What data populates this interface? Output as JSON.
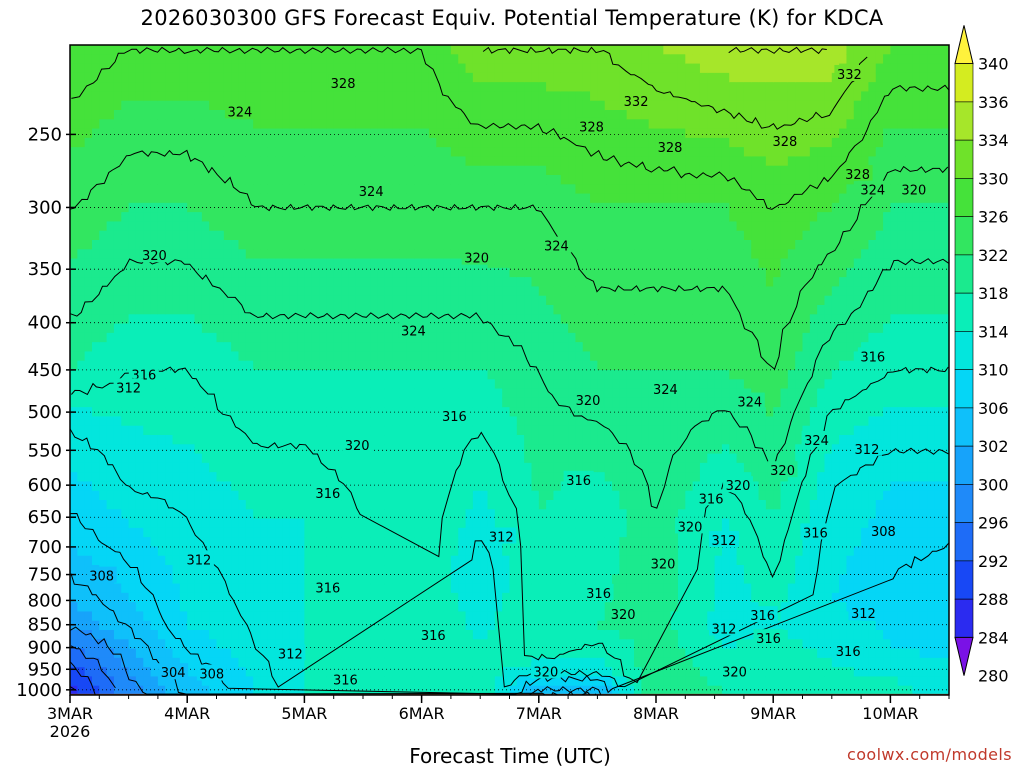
{
  "chart_data": {
    "type": "heatmap",
    "title": "2026030300 GFS Forecast Equiv. Potential Temperature (K) for KDCA",
    "xlabel": "Forecast Time (UTC)",
    "ylabel": "",
    "x_ticks": [
      "3MAR",
      "4MAR",
      "5MAR",
      "6MAR",
      "7MAR",
      "8MAR",
      "9MAR",
      "10MAR"
    ],
    "x_first_year": "2026",
    "x_range_days": [
      0,
      7.5
    ],
    "y_ticks": [
      250,
      300,
      350,
      400,
      450,
      500,
      550,
      600,
      650,
      700,
      750,
      800,
      850,
      900,
      950,
      1000
    ],
    "y_range_hpa": [
      200,
      1013
    ],
    "y_scale": "log-pressure",
    "colorbar_levels": [
      280,
      284,
      288,
      292,
      296,
      300,
      302,
      306,
      310,
      314,
      318,
      322,
      326,
      330,
      334,
      336,
      340
    ],
    "colorbar_colors": [
      "#7a12e6",
      "#2b2bf0",
      "#1848f5",
      "#1e6cf7",
      "#1f8af9",
      "#17a3fa",
      "#0fc0fa",
      "#05d6f6",
      "#03e6dd",
      "#0aeeb8",
      "#1bea8e",
      "#32e660",
      "#45e23a",
      "#6fe22a",
      "#a6e62a",
      "#d4ec20",
      "#fff23c"
    ],
    "background_levels": [
      {
        "t": 0.0,
        "levels": [
          [
            200,
            330
          ],
          [
            300,
            324
          ],
          [
            450,
            318
          ],
          [
            520,
            312
          ],
          [
            700,
            306
          ],
          [
            850,
            300
          ],
          [
            950,
            290
          ],
          [
            1013,
            286
          ]
        ]
      },
      {
        "t": 0.5,
        "levels": [
          [
            200,
            328
          ],
          [
            300,
            322
          ],
          [
            450,
            316
          ],
          [
            600,
            312
          ],
          [
            800,
            306
          ],
          [
            900,
            302
          ],
          [
            1013,
            298
          ]
        ]
      },
      {
        "t": 1.0,
        "levels": [
          [
            200,
            328
          ],
          [
            300,
            322
          ],
          [
            450,
            316
          ],
          [
            650,
            312
          ],
          [
            850,
            310
          ],
          [
            950,
            306
          ],
          [
            1013,
            304
          ]
        ]
      },
      {
        "t": 1.6,
        "levels": [
          [
            200,
            328
          ],
          [
            300,
            324
          ],
          [
            450,
            318
          ],
          [
            650,
            314
          ],
          [
            900,
            312
          ],
          [
            1013,
            310
          ]
        ]
      },
      {
        "t": 2.0,
        "levels": [
          [
            200,
            328
          ],
          [
            300,
            324
          ],
          [
            450,
            318
          ],
          [
            650,
            314
          ],
          [
            900,
            314
          ],
          [
            1013,
            314
          ]
        ]
      },
      {
        "t": 3.0,
        "levels": [
          [
            200,
            328
          ],
          [
            300,
            324
          ],
          [
            450,
            318
          ],
          [
            650,
            318
          ],
          [
            900,
            318
          ],
          [
            1013,
            318
          ]
        ]
      },
      {
        "t": 3.5,
        "levels": [
          [
            200,
            332
          ],
          [
            300,
            324
          ],
          [
            450,
            318
          ],
          [
            600,
            314
          ],
          [
            750,
            310
          ],
          [
            900,
            314
          ],
          [
            1013,
            318
          ]
        ]
      },
      {
        "t": 4.0,
        "levels": [
          [
            200,
            332
          ],
          [
            300,
            324
          ],
          [
            450,
            320
          ],
          [
            650,
            318
          ],
          [
            900,
            318
          ],
          [
            950,
            312
          ],
          [
            1013,
            300
          ]
        ]
      },
      {
        "t": 4.5,
        "levels": [
          [
            200,
            332
          ],
          [
            300,
            326
          ],
          [
            450,
            322
          ],
          [
            650,
            316
          ],
          [
            850,
            318
          ],
          [
            950,
            312
          ],
          [
            1013,
            300
          ]
        ]
      },
      {
        "t": 5.0,
        "levels": [
          [
            200,
            334
          ],
          [
            300,
            326
          ],
          [
            450,
            322
          ],
          [
            650,
            320
          ],
          [
            900,
            320
          ],
          [
            1013,
            322
          ]
        ]
      },
      {
        "t": 5.6,
        "levels": [
          [
            200,
            336
          ],
          [
            300,
            326
          ],
          [
            450,
            322
          ],
          [
            650,
            314
          ],
          [
            850,
            312
          ],
          [
            1013,
            318
          ]
        ]
      },
      {
        "t": 6.0,
        "levels": [
          [
            200,
            336
          ],
          [
            300,
            328
          ],
          [
            450,
            324
          ],
          [
            650,
            318
          ],
          [
            850,
            314
          ],
          [
            1013,
            318
          ]
        ]
      },
      {
        "t": 6.5,
        "levels": [
          [
            200,
            336
          ],
          [
            300,
            326
          ],
          [
            450,
            318
          ],
          [
            600,
            312
          ],
          [
            800,
            310
          ],
          [
            1013,
            316
          ]
        ]
      },
      {
        "t": 7.0,
        "levels": [
          [
            200,
            330
          ],
          [
            300,
            322
          ],
          [
            450,
            316
          ],
          [
            600,
            310
          ],
          [
            750,
            308
          ],
          [
            900,
            310
          ],
          [
            1013,
            316
          ]
        ]
      },
      {
        "t": 7.5,
        "levels": [
          [
            200,
            330
          ],
          [
            300,
            322
          ],
          [
            450,
            316
          ],
          [
            600,
            310
          ],
          [
            800,
            306
          ],
          [
            1013,
            312
          ]
        ]
      }
    ],
    "contour_labels": [
      {
        "text": "328",
        "t": 2.33,
        "p": 220
      },
      {
        "text": "324",
        "t": 1.45,
        "p": 236
      },
      {
        "text": "332",
        "t": 4.83,
        "p": 230
      },
      {
        "text": "328",
        "t": 4.45,
        "p": 245
      },
      {
        "text": "328",
        "t": 5.12,
        "p": 258
      },
      {
        "text": "328",
        "t": 6.1,
        "p": 254
      },
      {
        "text": "332",
        "t": 6.65,
        "p": 215
      },
      {
        "text": "328",
        "t": 6.72,
        "p": 276
      },
      {
        "text": "324",
        "t": 6.85,
        "p": 287
      },
      {
        "text": "320",
        "t": 7.2,
        "p": 287
      },
      {
        "text": "324",
        "t": 2.57,
        "p": 288
      },
      {
        "text": "324",
        "t": 4.15,
        "p": 330
      },
      {
        "text": "320",
        "t": 0.72,
        "p": 338
      },
      {
        "text": "320",
        "t": 3.47,
        "p": 340
      },
      {
        "text": "324",
        "t": 2.93,
        "p": 408
      },
      {
        "text": "316",
        "t": 0.63,
        "p": 455
      },
      {
        "text": "312",
        "t": 0.5,
        "p": 470
      },
      {
        "text": "316",
        "t": 6.85,
        "p": 435
      },
      {
        "text": "324",
        "t": 5.08,
        "p": 472
      },
      {
        "text": "324",
        "t": 5.8,
        "p": 487
      },
      {
        "text": "320",
        "t": 4.42,
        "p": 485
      },
      {
        "text": "316",
        "t": 3.28,
        "p": 505
      },
      {
        "text": "324",
        "t": 6.37,
        "p": 536
      },
      {
        "text": "320",
        "t": 2.45,
        "p": 543
      },
      {
        "text": "312",
        "t": 6.8,
        "p": 548
      },
      {
        "text": "320",
        "t": 6.08,
        "p": 578
      },
      {
        "text": "316",
        "t": 4.34,
        "p": 592
      },
      {
        "text": "316",
        "t": 2.2,
        "p": 612
      },
      {
        "text": "320",
        "t": 5.7,
        "p": 600
      },
      {
        "text": "316",
        "t": 5.47,
        "p": 620
      },
      {
        "text": "320",
        "t": 5.29,
        "p": 665
      },
      {
        "text": "312",
        "t": 3.68,
        "p": 682
      },
      {
        "text": "312",
        "t": 5.58,
        "p": 688
      },
      {
        "text": "316",
        "t": 6.36,
        "p": 675
      },
      {
        "text": "308",
        "t": 6.94,
        "p": 673
      },
      {
        "text": "312",
        "t": 1.1,
        "p": 722
      },
      {
        "text": "308",
        "t": 0.27,
        "p": 752
      },
      {
        "text": "320",
        "t": 5.06,
        "p": 730
      },
      {
        "text": "316",
        "t": 2.2,
        "p": 775
      },
      {
        "text": "316",
        "t": 4.51,
        "p": 785
      },
      {
        "text": "320",
        "t": 4.72,
        "p": 828
      },
      {
        "text": "316",
        "t": 5.91,
        "p": 830
      },
      {
        "text": "312",
        "t": 5.58,
        "p": 858
      },
      {
        "text": "312",
        "t": 6.77,
        "p": 826
      },
      {
        "text": "316",
        "t": 5.96,
        "p": 879
      },
      {
        "text": "316",
        "t": 3.1,
        "p": 872
      },
      {
        "text": "312",
        "t": 1.88,
        "p": 913
      },
      {
        "text": "316",
        "t": 6.64,
        "p": 908
      },
      {
        "text": "304",
        "t": 0.88,
        "p": 957
      },
      {
        "text": "308",
        "t": 1.21,
        "p": 960
      },
      {
        "text": "320",
        "t": 4.06,
        "p": 955
      },
      {
        "text": "320",
        "t": 5.67,
        "p": 955
      },
      {
        "text": "316",
        "t": 2.35,
        "p": 975
      }
    ]
  },
  "credit": "coolwx.com/models"
}
